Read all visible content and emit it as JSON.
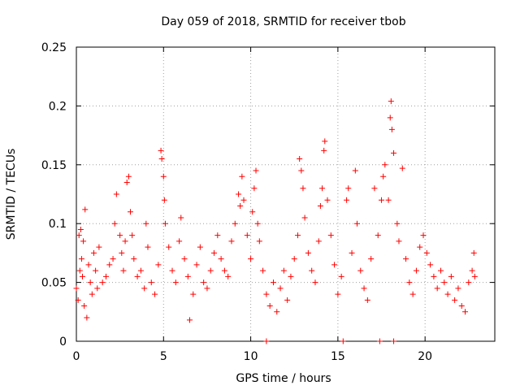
{
  "chart_data": {
    "type": "scatter",
    "title": "Day 059 of 2018, SRMTID for receiver tbob",
    "xlabel": "GPS time / hours",
    "ylabel": "SRMTID / TECUs",
    "xlim": [
      0,
      24
    ],
    "ylim": [
      0,
      0.25
    ],
    "xticks": [
      0,
      5,
      10,
      15,
      20
    ],
    "yticks": [
      0,
      0.05,
      0.1,
      0.15,
      0.2,
      0.25
    ],
    "ytick_labels": [
      "0",
      "0.05",
      "0.1",
      "0.15",
      "0.2",
      "0.25"
    ],
    "grid": true,
    "marker": "+",
    "color": "#ff0000",
    "series": [
      {
        "name": "SRMTID",
        "points": [
          [
            0.0,
            0.045
          ],
          [
            0.1,
            0.035
          ],
          [
            0.15,
            0.09
          ],
          [
            0.2,
            0.06
          ],
          [
            0.25,
            0.095
          ],
          [
            0.3,
            0.07
          ],
          [
            0.35,
            0.055
          ],
          [
            0.4,
            0.085
          ],
          [
            0.45,
            0.03
          ],
          [
            0.5,
            0.112
          ],
          [
            0.6,
            0.02
          ],
          [
            0.7,
            0.065
          ],
          [
            0.8,
            0.05
          ],
          [
            0.9,
            0.04
          ],
          [
            1.0,
            0.075
          ],
          [
            1.1,
            0.06
          ],
          [
            1.2,
            0.045
          ],
          [
            1.3,
            0.08
          ],
          [
            1.5,
            0.05
          ],
          [
            1.7,
            0.055
          ],
          [
            1.9,
            0.065
          ],
          [
            2.1,
            0.07
          ],
          [
            2.2,
            0.1
          ],
          [
            2.3,
            0.125
          ],
          [
            2.5,
            0.09
          ],
          [
            2.6,
            0.075
          ],
          [
            2.7,
            0.06
          ],
          [
            2.8,
            0.085
          ],
          [
            2.9,
            0.135
          ],
          [
            3.0,
            0.14
          ],
          [
            3.1,
            0.11
          ],
          [
            3.2,
            0.09
          ],
          [
            3.3,
            0.07
          ],
          [
            3.5,
            0.055
          ],
          [
            3.7,
            0.06
          ],
          [
            3.9,
            0.045
          ],
          [
            4.0,
            0.1
          ],
          [
            4.1,
            0.08
          ],
          [
            4.3,
            0.05
          ],
          [
            4.5,
            0.04
          ],
          [
            4.7,
            0.065
          ],
          [
            4.85,
            0.162
          ],
          [
            4.9,
            0.155
          ],
          [
            5.0,
            0.14
          ],
          [
            5.05,
            0.12
          ],
          [
            5.1,
            0.1
          ],
          [
            5.3,
            0.08
          ],
          [
            5.5,
            0.06
          ],
          [
            5.7,
            0.05
          ],
          [
            5.9,
            0.085
          ],
          [
            6.0,
            0.105
          ],
          [
            6.2,
            0.07
          ],
          [
            6.4,
            0.055
          ],
          [
            6.5,
            0.018
          ],
          [
            6.7,
            0.04
          ],
          [
            6.9,
            0.065
          ],
          [
            7.1,
            0.08
          ],
          [
            7.3,
            0.05
          ],
          [
            7.5,
            0.045
          ],
          [
            7.7,
            0.06
          ],
          [
            7.9,
            0.075
          ],
          [
            8.1,
            0.09
          ],
          [
            8.3,
            0.07
          ],
          [
            8.5,
            0.06
          ],
          [
            8.7,
            0.055
          ],
          [
            8.9,
            0.085
          ],
          [
            9.1,
            0.1
          ],
          [
            9.3,
            0.125
          ],
          [
            9.4,
            0.115
          ],
          [
            9.5,
            0.14
          ],
          [
            9.6,
            0.12
          ],
          [
            9.8,
            0.09
          ],
          [
            10.0,
            0.07
          ],
          [
            10.1,
            0.11
          ],
          [
            10.2,
            0.13
          ],
          [
            10.3,
            0.145
          ],
          [
            10.4,
            0.1
          ],
          [
            10.5,
            0.085
          ],
          [
            10.7,
            0.06
          ],
          [
            10.9,
            0.04
          ],
          [
            10.9,
            0.0
          ],
          [
            11.1,
            0.03
          ],
          [
            11.3,
            0.05
          ],
          [
            11.5,
            0.025
          ],
          [
            11.7,
            0.045
          ],
          [
            11.9,
            0.06
          ],
          [
            12.1,
            0.035
          ],
          [
            12.3,
            0.055
          ],
          [
            12.5,
            0.07
          ],
          [
            12.7,
            0.09
          ],
          [
            12.8,
            0.155
          ],
          [
            12.9,
            0.145
          ],
          [
            13.0,
            0.13
          ],
          [
            13.1,
            0.105
          ],
          [
            13.3,
            0.075
          ],
          [
            13.5,
            0.06
          ],
          [
            13.7,
            0.05
          ],
          [
            13.9,
            0.085
          ],
          [
            14.0,
            0.115
          ],
          [
            14.1,
            0.13
          ],
          [
            14.2,
            0.162
          ],
          [
            14.25,
            0.17
          ],
          [
            14.4,
            0.12
          ],
          [
            14.6,
            0.09
          ],
          [
            14.8,
            0.065
          ],
          [
            15.0,
            0.04
          ],
          [
            15.2,
            0.055
          ],
          [
            15.3,
            0.0
          ],
          [
            15.5,
            0.12
          ],
          [
            15.6,
            0.13
          ],
          [
            15.8,
            0.075
          ],
          [
            16.0,
            0.145
          ],
          [
            16.1,
            0.1
          ],
          [
            16.3,
            0.06
          ],
          [
            16.5,
            0.045
          ],
          [
            16.7,
            0.035
          ],
          [
            16.9,
            0.07
          ],
          [
            17.1,
            0.13
          ],
          [
            17.3,
            0.09
          ],
          [
            17.4,
            0.0
          ],
          [
            17.5,
            0.12
          ],
          [
            17.6,
            0.14
          ],
          [
            17.7,
            0.15
          ],
          [
            17.9,
            0.12
          ],
          [
            18.0,
            0.19
          ],
          [
            18.05,
            0.204
          ],
          [
            18.1,
            0.18
          ],
          [
            18.2,
            0.16
          ],
          [
            18.2,
            0.0
          ],
          [
            18.4,
            0.1
          ],
          [
            18.5,
            0.085
          ],
          [
            18.7,
            0.147
          ],
          [
            18.9,
            0.07
          ],
          [
            19.1,
            0.05
          ],
          [
            19.3,
            0.04
          ],
          [
            19.5,
            0.06
          ],
          [
            19.7,
            0.08
          ],
          [
            19.9,
            0.09
          ],
          [
            20.1,
            0.075
          ],
          [
            20.3,
            0.065
          ],
          [
            20.5,
            0.055
          ],
          [
            20.7,
            0.045
          ],
          [
            20.9,
            0.06
          ],
          [
            21.1,
            0.05
          ],
          [
            21.3,
            0.04
          ],
          [
            21.5,
            0.055
          ],
          [
            21.7,
            0.035
          ],
          [
            21.9,
            0.045
          ],
          [
            22.1,
            0.03
          ],
          [
            22.3,
            0.025
          ],
          [
            22.5,
            0.05
          ],
          [
            22.7,
            0.06
          ],
          [
            22.8,
            0.075
          ],
          [
            22.85,
            0.055
          ]
        ]
      }
    ]
  }
}
